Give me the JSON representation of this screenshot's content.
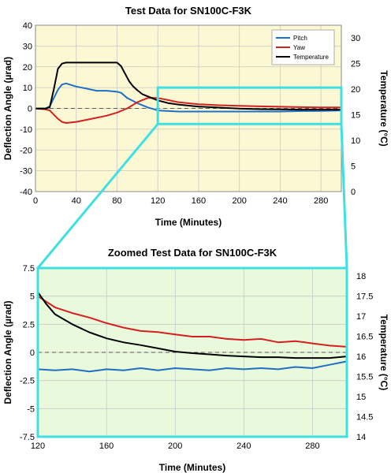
{
  "chart_data": [
    {
      "type": "line",
      "title": "Test Data for SN100C-F3K",
      "xlabel": "Time (Minutes)",
      "ylabel": "Deflection Angle (µrad)",
      "y2label": "Temperature (°C)",
      "xlim": [
        0,
        300
      ],
      "ylim": [
        -40,
        40
      ],
      "y2lim": [
        0,
        32.5
      ],
      "x_ticks": [
        "0",
        "40",
        "80",
        "120",
        "160",
        "200",
        "240",
        "280"
      ],
      "y_ticks": [
        "40",
        "30",
        "20",
        "10",
        "0",
        "-10",
        "-20",
        "-30",
        "-40"
      ],
      "y2_ticks": [
        "30",
        "25",
        "20",
        "15",
        "10",
        "5",
        "0"
      ],
      "grid": true,
      "legend_position": "top-right",
      "colors": {
        "background": "#fbf8d3",
        "pitch": "#1f6fc4",
        "yaw": "#d42020",
        "temperature": "#000000",
        "zoom_box": "#3ee0e4"
      },
      "series": [
        {
          "name": "Pitch",
          "axis": "left",
          "x": [
            0,
            10,
            14,
            18,
            22,
            26,
            30,
            40,
            50,
            60,
            70,
            80,
            84,
            90,
            100,
            110,
            120,
            140,
            160,
            180,
            200,
            220,
            240,
            260,
            280,
            300
          ],
          "values": [
            0,
            0,
            1,
            5,
            9,
            11.5,
            12,
            10.5,
            9.5,
            8.5,
            8.5,
            8,
            7.5,
            5,
            2.5,
            0.5,
            -1,
            -1.5,
            -1.5,
            -1.5,
            -1.5,
            -1.5,
            -1.5,
            -1.3,
            -1.2,
            -1
          ]
        },
        {
          "name": "Yaw",
          "axis": "left",
          "x": [
            0,
            10,
            14,
            18,
            22,
            26,
            30,
            40,
            50,
            60,
            70,
            80,
            90,
            100,
            110,
            120,
            130,
            140,
            160,
            180,
            200,
            220,
            240,
            260,
            280,
            300
          ],
          "values": [
            0,
            -0.5,
            -1,
            -3,
            -5,
            -6.5,
            -7,
            -6.5,
            -5.5,
            -4.5,
            -3.5,
            -2,
            0,
            3,
            5,
            5,
            4,
            3,
            2,
            1.5,
            1.2,
            1,
            0.8,
            0.6,
            0.5,
            0.5
          ]
        },
        {
          "name": "Temperature",
          "axis": "right",
          "x": [
            0,
            10,
            14,
            18,
            22,
            26,
            30,
            40,
            60,
            80,
            84,
            88,
            92,
            96,
            100,
            105,
            110,
            115,
            120,
            130,
            140,
            160,
            180,
            200,
            220,
            240,
            260,
            280,
            300
          ],
          "values": [
            16.2,
            16.2,
            16.5,
            20,
            24,
            25,
            25.2,
            25.2,
            25.2,
            25.2,
            24.5,
            23,
            21.5,
            20.5,
            19.8,
            19,
            18.6,
            18.2,
            17.8,
            17.3,
            17,
            16.6,
            16.4,
            16.2,
            16.1,
            16.05,
            16,
            16,
            16
          ]
        }
      ]
    },
    {
      "type": "line",
      "title": "Zoomed Test Data for SN100C-F3K",
      "xlabel": "Time (Minutes)",
      "ylabel": "Deflection Angle (µrad)",
      "y2label": "Temperature (°C)",
      "xlim": [
        120,
        300
      ],
      "ylim": [
        -7.5,
        7.5
      ],
      "y2lim": [
        14,
        18.2
      ],
      "x_ticks": [
        "120",
        "160",
        "200",
        "240",
        "280"
      ],
      "y_ticks": [
        "7.5",
        "5",
        "2.5",
        "0",
        "-2.5",
        "-5",
        "-7.5"
      ],
      "y2_ticks": [
        "18",
        "17.5",
        "17",
        "16.5",
        "16",
        "15.5",
        "15",
        "14.5",
        "14"
      ],
      "grid": true,
      "colors": {
        "background": "#e9f9dc",
        "pitch": "#1f6fc4",
        "yaw": "#d42020",
        "temperature": "#000000",
        "frame": "#3ee0e4"
      },
      "series": [
        {
          "name": "Pitch",
          "axis": "left",
          "x": [
            120,
            130,
            140,
            150,
            160,
            170,
            180,
            190,
            200,
            210,
            220,
            230,
            240,
            250,
            260,
            270,
            280,
            290,
            300
          ],
          "values": [
            -1.5,
            -1.6,
            -1.5,
            -1.7,
            -1.5,
            -1.6,
            -1.4,
            -1.6,
            -1.4,
            -1.5,
            -1.6,
            -1.4,
            -1.5,
            -1.4,
            -1.5,
            -1.3,
            -1.4,
            -1.1,
            -0.8
          ]
        },
        {
          "name": "Yaw",
          "axis": "left",
          "x": [
            120,
            125,
            130,
            140,
            150,
            160,
            170,
            180,
            190,
            200,
            210,
            220,
            230,
            240,
            250,
            260,
            270,
            280,
            290,
            300
          ],
          "values": [
            5,
            4.5,
            4,
            3.5,
            3.1,
            2.6,
            2.2,
            1.9,
            1.8,
            1.6,
            1.4,
            1.4,
            1.2,
            1.1,
            1.2,
            0.9,
            1.0,
            0.8,
            0.6,
            0.5
          ]
        },
        {
          "name": "Temperature",
          "axis": "right",
          "x": [
            120,
            125,
            130,
            140,
            150,
            160,
            170,
            180,
            190,
            200,
            210,
            220,
            230,
            240,
            250,
            260,
            270,
            280,
            290,
            300
          ],
          "values": [
            17.6,
            17.3,
            17.05,
            16.8,
            16.6,
            16.45,
            16.35,
            16.28,
            16.2,
            16.12,
            16.08,
            16.05,
            16.02,
            16.0,
            15.98,
            15.98,
            15.96,
            15.96,
            15.96,
            16.0
          ]
        }
      ]
    }
  ]
}
